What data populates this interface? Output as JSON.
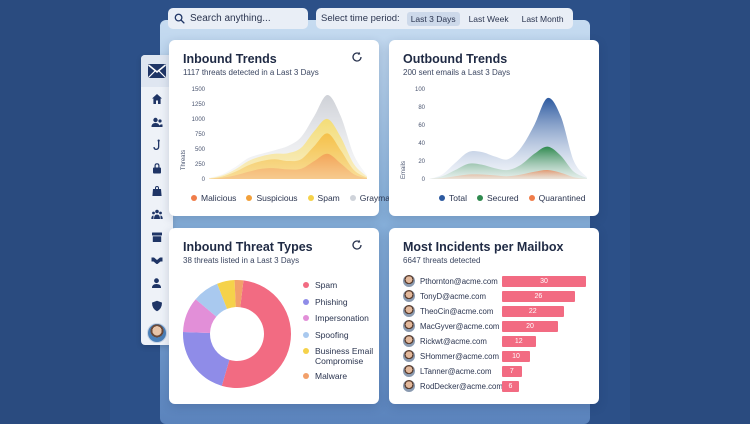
{
  "search": {
    "placeholder": "Search anything..."
  },
  "time_period": {
    "label": "Select time period:",
    "options": [
      "Last 3 Days",
      "Last Week",
      "Last Month"
    ],
    "selected": "Last 3 Days"
  },
  "sidebar": {
    "items": [
      "home-icon",
      "users-icon",
      "hook-icon",
      "lock-icon",
      "shopping-bag-icon",
      "groups-icon",
      "archive-icon",
      "handshake-icon",
      "user-icon",
      "shield-icon"
    ]
  },
  "inbound_trends": {
    "title": "Inbound Trends",
    "subtitle": "1117 threats detected in a Last 3 Days",
    "ylabel": "Threats",
    "yticks": [
      "1500",
      "1250",
      "1000",
      "750",
      "500",
      "250",
      "0"
    ],
    "legend": [
      {
        "label": "Malicious",
        "color": "#f07d4a"
      },
      {
        "label": "Suspicious",
        "color": "#f2a03a"
      },
      {
        "label": "Spam",
        "color": "#f5d24a"
      },
      {
        "label": "Graymail",
        "color": "#cfd3da"
      }
    ]
  },
  "outbound_trends": {
    "title": "Outbound Trends",
    "subtitle": "200 sent emails a Last 3 Days",
    "ylabel": "Emails",
    "yticks": [
      "100",
      "80",
      "60",
      "40",
      "20",
      "0"
    ],
    "legend": [
      {
        "label": "Total",
        "color": "#2d5aa0"
      },
      {
        "label": "Secured",
        "color": "#2f8a4e"
      },
      {
        "label": "Quarantined",
        "color": "#f07d4a"
      }
    ]
  },
  "threat_types": {
    "title": "Inbound Threat Types",
    "subtitle": "38 threats listed in a Last 3 Days",
    "items": [
      {
        "label": "Spam",
        "color": "#f26b82"
      },
      {
        "label": "Phishing",
        "color": "#8f8ce8"
      },
      {
        "label": "Impersonation",
        "color": "#e28fd8"
      },
      {
        "label": "Spoofing",
        "color": "#a9c9ef"
      },
      {
        "label": "Business Email Compromise",
        "color": "#f5d24a"
      },
      {
        "label": "Malware",
        "color": "#f2a06a"
      }
    ]
  },
  "chart_data": [
    {
      "type": "area",
      "title": "Inbound Trends",
      "ylabel": "Threats",
      "ylim": [
        0,
        1500
      ],
      "x": [
        0,
        1,
        2,
        3,
        4,
        5,
        6,
        7,
        8,
        9,
        10,
        11,
        12
      ],
      "series": [
        {
          "name": "Graymail",
          "values": [
            20,
            80,
            200,
            350,
            420,
            480,
            550,
            700,
            1050,
            1400,
            1050,
            400,
            60
          ]
        },
        {
          "name": "Spam",
          "values": [
            10,
            60,
            160,
            300,
            380,
            420,
            430,
            520,
            800,
            1000,
            700,
            250,
            40
          ]
        },
        {
          "name": "Suspicious",
          "values": [
            5,
            40,
            120,
            230,
            300,
            330,
            300,
            330,
            550,
            760,
            480,
            150,
            20
          ]
        },
        {
          "name": "Malicious",
          "values": [
            0,
            20,
            60,
            120,
            170,
            180,
            160,
            170,
            300,
            420,
            260,
            80,
            10
          ]
        }
      ]
    },
    {
      "type": "area",
      "title": "Outbound Trends",
      "ylabel": "Emails",
      "ylim": [
        0,
        100
      ],
      "x": [
        0,
        1,
        2,
        3,
        4,
        5,
        6,
        7,
        8,
        9,
        10,
        11,
        12
      ],
      "series": [
        {
          "name": "Total",
          "values": [
            0,
            5,
            18,
            30,
            30,
            25,
            22,
            35,
            60,
            90,
            70,
            20,
            2
          ]
        },
        {
          "name": "Secured",
          "values": [
            0,
            3,
            10,
            17,
            16,
            12,
            10,
            16,
            28,
            36,
            26,
            8,
            1
          ]
        },
        {
          "name": "Quarantined",
          "values": [
            0,
            1,
            3,
            5,
            5,
            4,
            3,
            5,
            8,
            10,
            7,
            2,
            0
          ]
        }
      ]
    },
    {
      "type": "pie",
      "title": "Inbound Threat Types",
      "categories": [
        "Spam",
        "Phishing",
        "Impersonation",
        "Spoofing",
        "Business Email Compromise",
        "Malware"
      ],
      "values": [
        20,
        8,
        4,
        3,
        2,
        1
      ]
    },
    {
      "type": "bar",
      "title": "Most Incidents per Mailbox",
      "categories": [
        "Pthornton@acme.com",
        "TonyD@acme.com",
        "TheoCin@acme.com",
        "MacGyver@acme.com",
        "Rickwt@acme.com",
        "SHommer@acme.com",
        "LTanner@acme.com",
        "RodDecker@acme.com"
      ],
      "values": [
        30,
        26,
        22,
        20,
        12,
        10,
        7,
        6
      ]
    }
  ],
  "mailboxes": {
    "title": "Most Incidents per Mailbox",
    "subtitle": "6647 threats detected",
    "rows": [
      {
        "email": "Pthornton@acme.com",
        "value": "30"
      },
      {
        "email": "TonyD@acme.com",
        "value": "26"
      },
      {
        "email": "TheoCin@acme.com",
        "value": "22"
      },
      {
        "email": "MacGyver@acme.com",
        "value": "20"
      },
      {
        "email": "Rickwt@acme.com",
        "value": "12"
      },
      {
        "email": "SHommer@acme.com",
        "value": "10"
      },
      {
        "email": "LTanner@acme.com",
        "value": "7"
      },
      {
        "email": "RodDecker@acme.com",
        "value": "6"
      }
    ]
  }
}
